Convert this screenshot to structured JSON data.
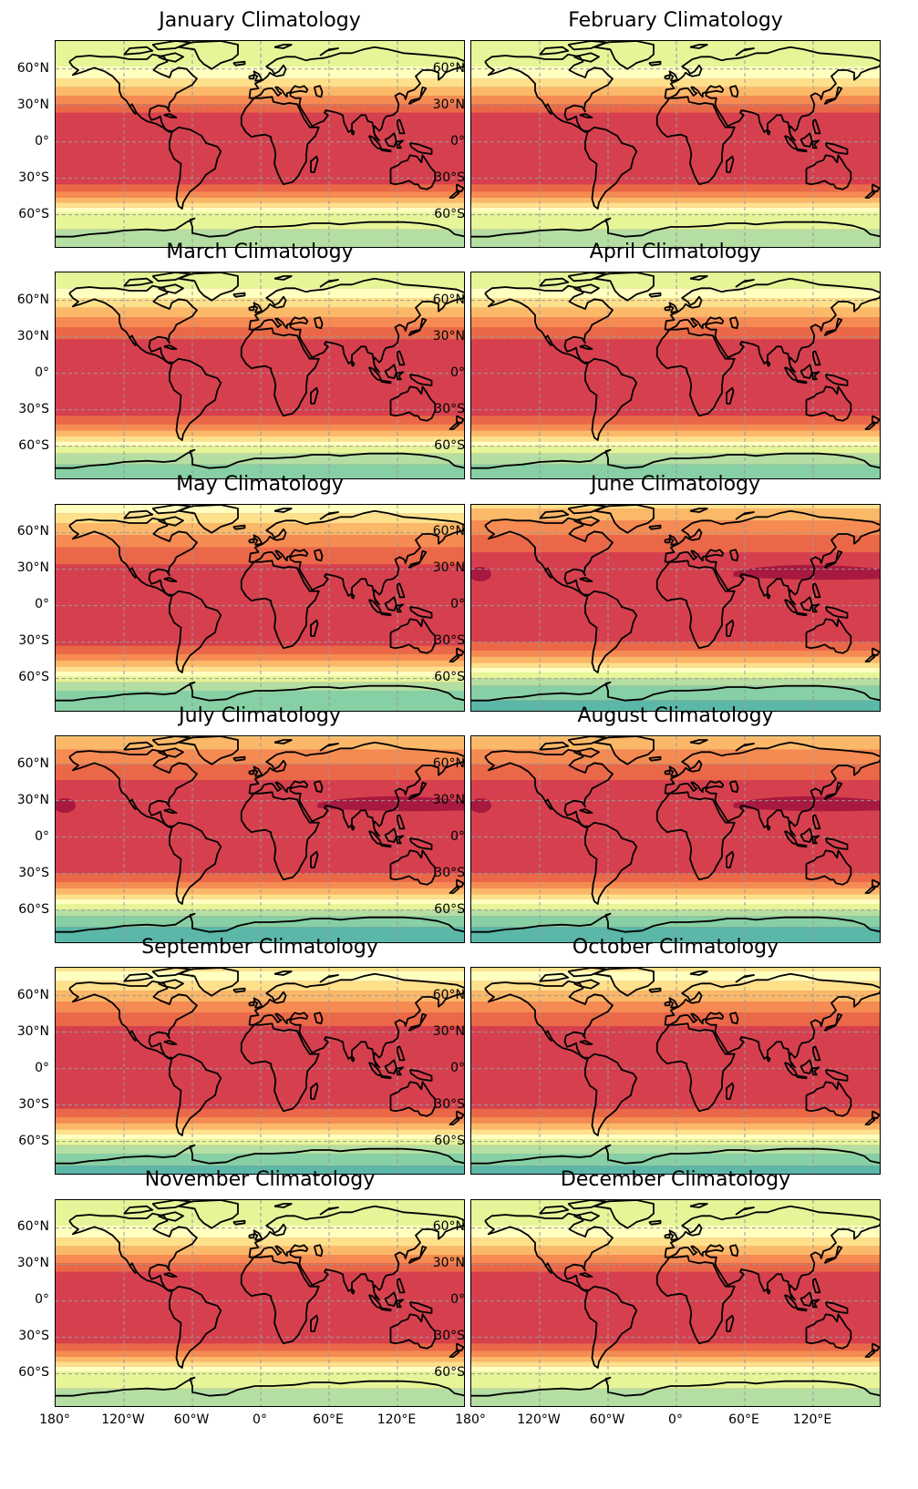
{
  "figure": {
    "lat_tick_labels": [
      "60°N",
      "30°N",
      "0°",
      "30°S",
      "60°S"
    ],
    "lon_tick_labels": [
      "180°",
      "120°W",
      "60°W",
      "0°",
      "60°E",
      "120°E"
    ],
    "panels": [
      {
        "title": "January Climatology",
        "season": "djf"
      },
      {
        "title": "February Climatology",
        "season": "djf"
      },
      {
        "title": "March Climatology",
        "season": "mam"
      },
      {
        "title": "April Climatology",
        "season": "mam"
      },
      {
        "title": "May Climatology",
        "season": "mam2"
      },
      {
        "title": "June Climatology",
        "season": "jja"
      },
      {
        "title": "July Climatology",
        "season": "jja2"
      },
      {
        "title": "August Climatology",
        "season": "jja2"
      },
      {
        "title": "September Climatology",
        "season": "son"
      },
      {
        "title": "October Climatology",
        "season": "son"
      },
      {
        "title": "November Climatology",
        "season": "djf"
      },
      {
        "title": "December Climatology",
        "season": "djf"
      }
    ]
  },
  "colors": {
    "band_dark": "#a8193f",
    "band_red": "#d6404e",
    "band_orange_red": "#ea6847",
    "band_orange": "#f58b52",
    "band_light_orange": "#fbb869",
    "band_pale": "#fee08b",
    "band_cream": "#ffffbf",
    "band_pale_green": "#e6f598",
    "band_light_green": "#b4dea2",
    "band_green": "#87cfa4",
    "band_teal": "#5bb7a8",
    "coastline": "#000000",
    "gridline": "#999999"
  }
}
